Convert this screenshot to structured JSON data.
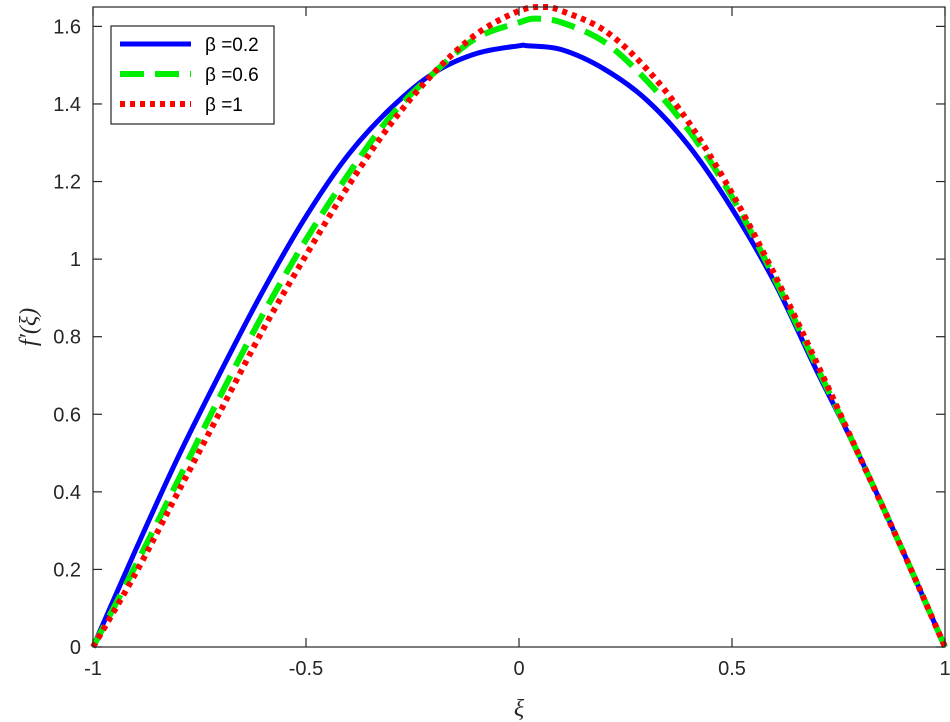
{
  "chart_data": {
    "type": "line",
    "xlabel": "ξ",
    "ylabel": "f′(ξ)",
    "xlim": [
      -1,
      1
    ],
    "ylim": [
      0,
      1.65
    ],
    "xticks": [
      -1,
      -0.5,
      0,
      0.5,
      1
    ],
    "xtick_labels": [
      "-1",
      "-0.5",
      "0",
      "0.5",
      "1"
    ],
    "yticks": [
      0,
      0.2,
      0.4,
      0.6,
      0.8,
      1,
      1.2,
      1.4,
      1.6
    ],
    "ytick_labels": [
      "0",
      "0.2",
      "0.4",
      "0.6",
      "0.8",
      "1",
      "1.2",
      "1.4",
      "1.6"
    ],
    "grid": false,
    "legend_position": "top-left",
    "series": [
      {
        "name": "β =0.2",
        "color": "#0000ff",
        "style": "solid",
        "x": [
          -1,
          -0.9,
          -0.8,
          -0.7,
          -0.6,
          -0.5,
          -0.4,
          -0.3,
          -0.2,
          -0.1,
          0,
          0.02,
          0.1,
          0.2,
          0.3,
          0.4,
          0.5,
          0.6,
          0.7,
          0.8,
          0.9,
          1
        ],
        "y": [
          0,
          0.25,
          0.49,
          0.71,
          0.92,
          1.11,
          1.27,
          1.39,
          1.48,
          1.53,
          1.55,
          1.55,
          1.54,
          1.49,
          1.41,
          1.29,
          1.13,
          0.94,
          0.71,
          0.49,
          0.25,
          0
        ]
      },
      {
        "name": "β =0.6",
        "color": "#00ee00",
        "style": "dashed",
        "x": [
          -1,
          -0.9,
          -0.8,
          -0.7,
          -0.6,
          -0.5,
          -0.4,
          -0.3,
          -0.2,
          -0.1,
          0,
          0.04,
          0.1,
          0.2,
          0.3,
          0.4,
          0.5,
          0.6,
          0.7,
          0.8,
          0.9,
          1
        ],
        "y": [
          0,
          0.21,
          0.43,
          0.65,
          0.86,
          1.05,
          1.22,
          1.37,
          1.48,
          1.57,
          1.61,
          1.62,
          1.61,
          1.56,
          1.46,
          1.33,
          1.16,
          0.95,
          0.72,
          0.49,
          0.25,
          0
        ]
      },
      {
        "name": "β =1",
        "color": "#ff0000",
        "style": "dotted",
        "x": [
          -1,
          -0.9,
          -0.8,
          -0.7,
          -0.6,
          -0.5,
          -0.4,
          -0.3,
          -0.2,
          -0.1,
          0,
          0.06,
          0.1,
          0.2,
          0.3,
          0.4,
          0.5,
          0.6,
          0.7,
          0.8,
          0.9,
          1
        ],
        "y": [
          0,
          0.19,
          0.4,
          0.61,
          0.82,
          1.01,
          1.19,
          1.35,
          1.48,
          1.58,
          1.64,
          1.65,
          1.64,
          1.59,
          1.49,
          1.35,
          1.17,
          0.96,
          0.73,
          0.49,
          0.25,
          0
        ]
      }
    ]
  }
}
